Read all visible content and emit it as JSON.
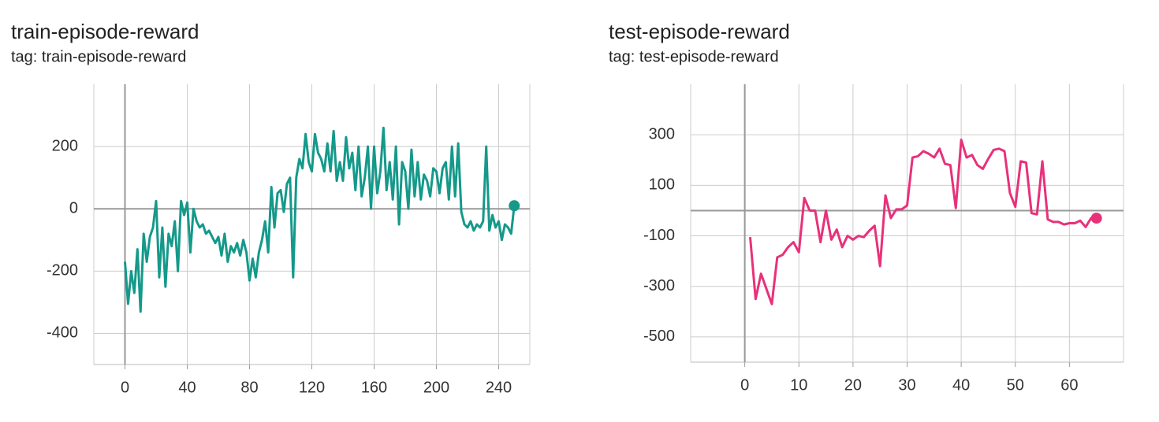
{
  "chart_data": [
    {
      "type": "line",
      "title": "train-episode-reward",
      "subtitle": "tag: train-episode-reward",
      "color": "#14998a",
      "x": [
        0,
        2,
        4,
        6,
        8,
        10,
        12,
        14,
        16,
        18,
        20,
        22,
        24,
        26,
        28,
        30,
        32,
        34,
        36,
        38,
        40,
        42,
        44,
        46,
        48,
        50,
        52,
        54,
        56,
        58,
        60,
        62,
        64,
        66,
        68,
        70,
        72,
        74,
        76,
        78,
        80,
        82,
        84,
        86,
        88,
        90,
        92,
        94,
        96,
        98,
        100,
        102,
        104,
        106,
        108,
        110,
        112,
        114,
        116,
        118,
        120,
        122,
        124,
        126,
        128,
        130,
        132,
        134,
        136,
        138,
        140,
        142,
        144,
        146,
        148,
        150,
        152,
        154,
        156,
        158,
        160,
        162,
        164,
        166,
        168,
        170,
        172,
        174,
        176,
        178,
        180,
        182,
        184,
        186,
        188,
        190,
        192,
        194,
        196,
        198,
        200,
        202,
        204,
        206,
        208,
        210,
        212,
        214,
        216,
        218,
        220,
        222,
        224,
        226,
        228,
        230,
        232,
        234,
        236,
        238,
        240,
        242,
        244,
        246,
        248,
        250
      ],
      "values": [
        -170,
        -305,
        -200,
        -270,
        -130,
        -330,
        -80,
        -170,
        -90,
        -60,
        25,
        -220,
        -60,
        -250,
        -80,
        -120,
        -40,
        -200,
        25,
        -20,
        20,
        -140,
        0,
        -40,
        -60,
        -50,
        -80,
        -70,
        -90,
        -110,
        -90,
        -150,
        -80,
        -170,
        -120,
        -140,
        -110,
        -150,
        -100,
        -140,
        -230,
        -160,
        -220,
        -140,
        -100,
        -40,
        -140,
        70,
        -60,
        50,
        60,
        -10,
        80,
        100,
        -220,
        100,
        160,
        130,
        240,
        150,
        120,
        240,
        180,
        160,
        120,
        210,
        120,
        250,
        90,
        150,
        90,
        230,
        130,
        180,
        60,
        200,
        40,
        100,
        200,
        0,
        200,
        50,
        120,
        260,
        60,
        150,
        30,
        200,
        -50,
        150,
        120,
        0,
        190,
        40,
        150,
        30,
        110,
        90,
        40,
        130,
        120,
        50,
        130,
        150,
        30,
        200,
        40,
        210,
        -10,
        -50,
        -60,
        -40,
        -70,
        -50,
        -60,
        -40,
        200,
        -70,
        -20,
        -60,
        -40,
        -100,
        -50,
        -60,
        -80,
        10
      ],
      "xlim": [
        -20,
        260
      ],
      "ylim": [
        -500,
        400
      ],
      "xticks": [
        0,
        40,
        80,
        120,
        160,
        200,
        240
      ],
      "yticks": [
        -400,
        -200,
        0,
        200
      ],
      "grid": true
    },
    {
      "type": "line",
      "title": "test-episode-reward",
      "subtitle": "tag: test-episode-reward",
      "color": "#e8317a",
      "x": [
        1,
        2,
        3,
        4,
        5,
        6,
        7,
        8,
        9,
        10,
        11,
        12,
        13,
        14,
        15,
        16,
        17,
        18,
        19,
        20,
        21,
        22,
        23,
        24,
        25,
        26,
        27,
        28,
        29,
        30,
        31,
        32,
        33,
        34,
        35,
        36,
        37,
        38,
        39,
        40,
        41,
        42,
        43,
        44,
        45,
        46,
        47,
        48,
        49,
        50,
        51,
        52,
        53,
        54,
        55,
        56,
        57,
        58,
        59,
        60,
        61,
        62,
        63,
        64,
        65
      ],
      "values": [
        -105,
        -350,
        -250,
        -310,
        -370,
        -185,
        -175,
        -145,
        -125,
        -165,
        50,
        0,
        0,
        -125,
        0,
        -115,
        -75,
        -145,
        -100,
        -115,
        -100,
        -105,
        -80,
        -60,
        -220,
        60,
        -30,
        5,
        5,
        20,
        210,
        215,
        235,
        225,
        210,
        245,
        185,
        180,
        10,
        280,
        210,
        220,
        180,
        165,
        205,
        240,
        245,
        235,
        70,
        15,
        195,
        190,
        -10,
        -15,
        195,
        -35,
        -45,
        -45,
        -55,
        -50,
        -50,
        -40,
        -65,
        -30,
        -30
      ],
      "xlim": [
        -10,
        70
      ],
      "ylim": [
        -600,
        500
      ],
      "xticks": [
        0,
        10,
        20,
        30,
        40,
        50,
        60
      ],
      "yticks": [
        -500,
        -300,
        -100,
        100,
        300
      ],
      "grid": true
    }
  ]
}
